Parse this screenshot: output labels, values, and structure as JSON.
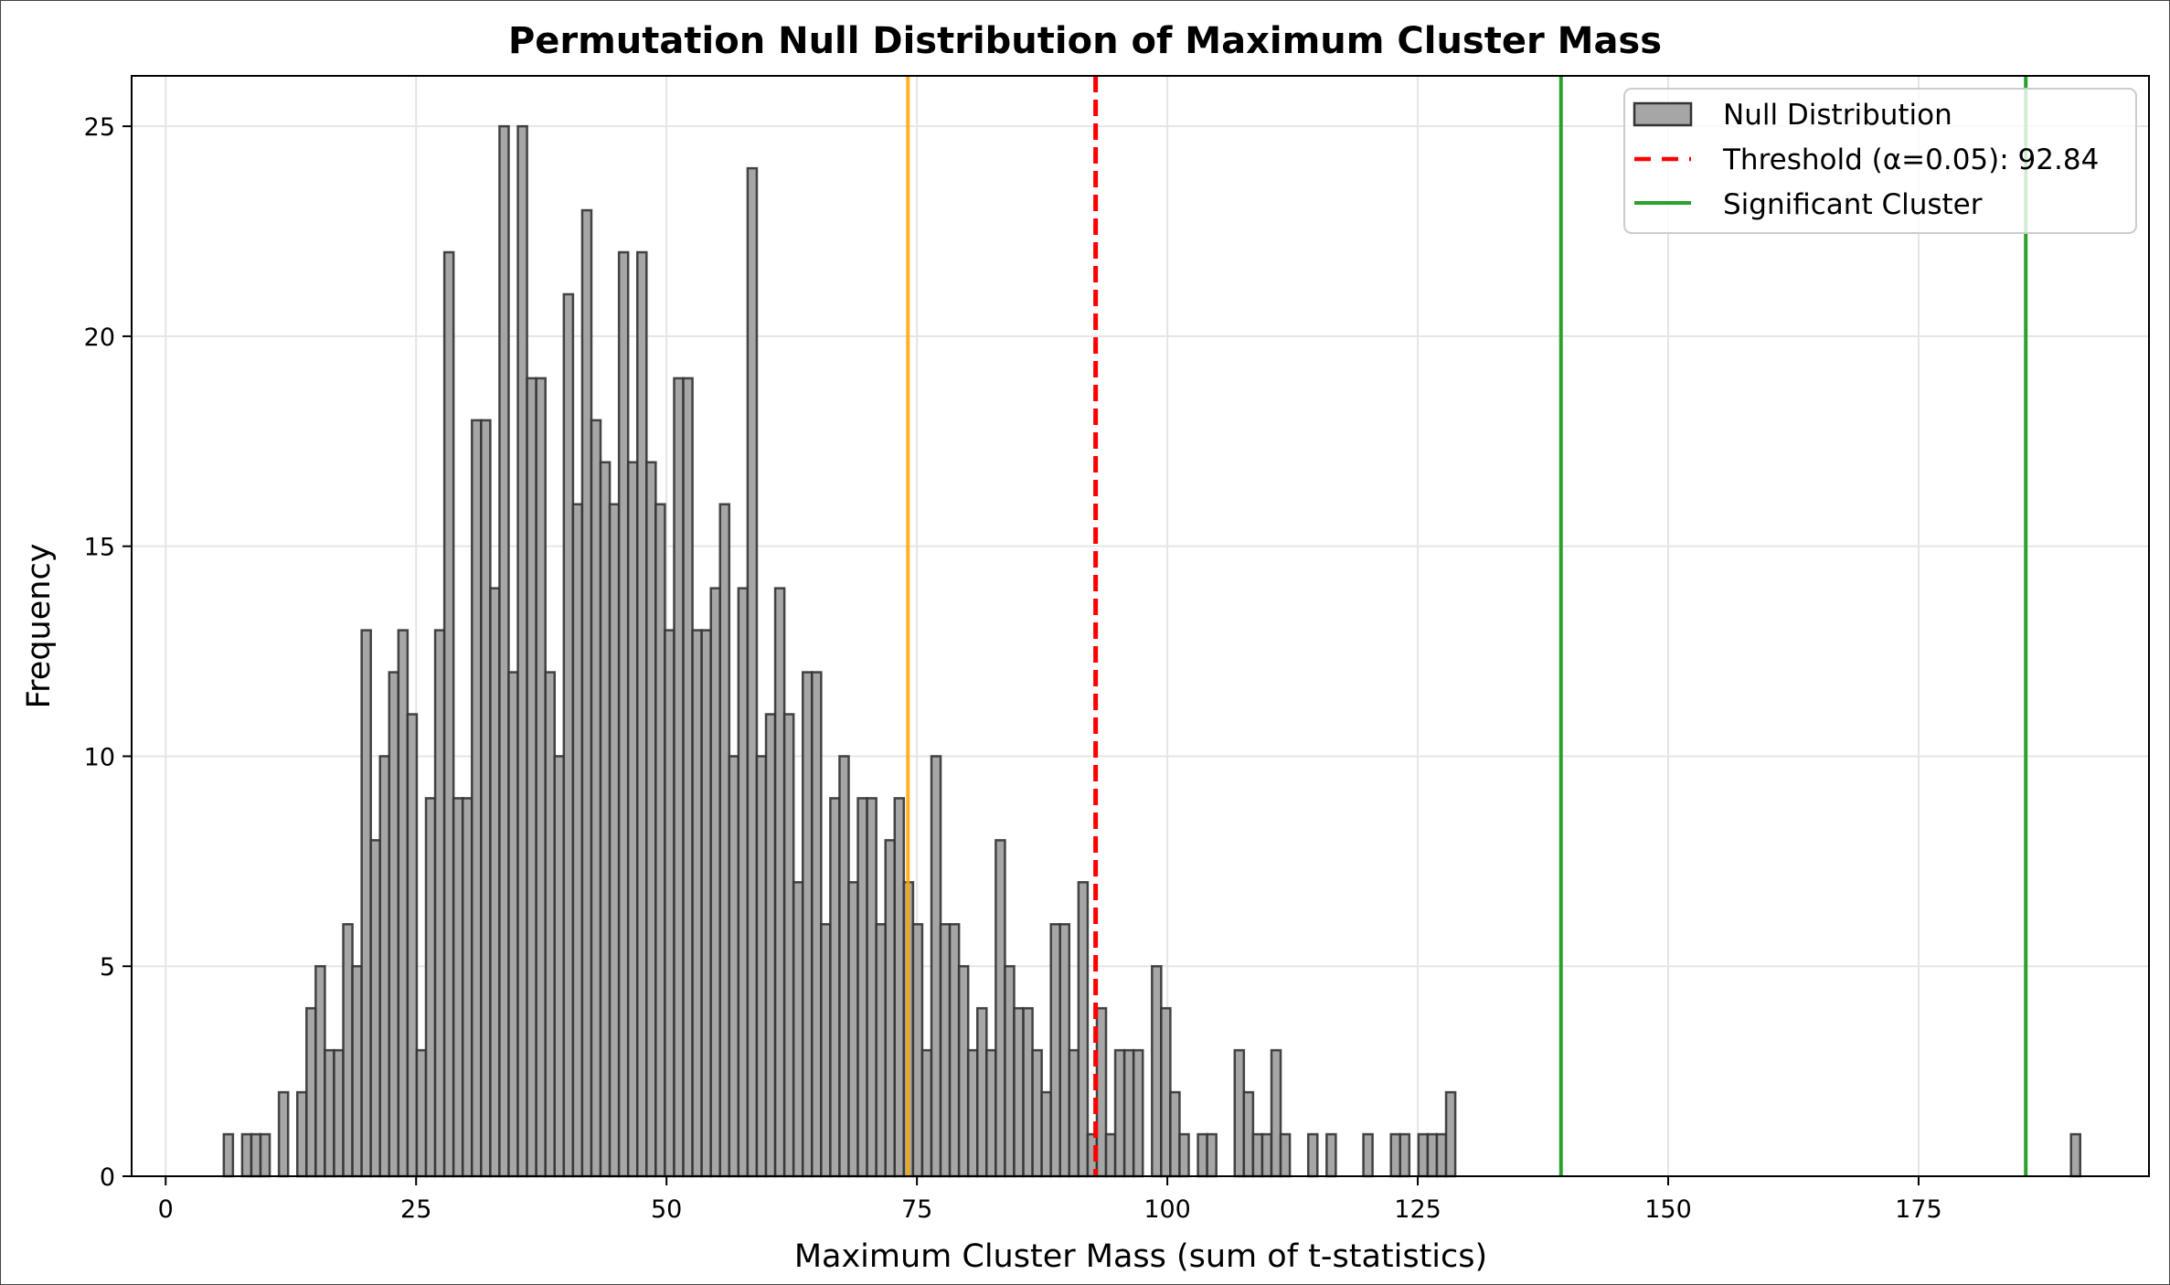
{
  "chart_data": {
    "type": "bar",
    "subtype": "histogram",
    "title": "Permutation Null Distribution of Maximum Cluster Mass",
    "xlabel": "Maximum Cluster Mass (sum of t-statistics)",
    "ylabel": "Frequency",
    "xlim": [
      -3.4,
      198
    ],
    "ylim": [
      0,
      26.2
    ],
    "xticks": [
      0,
      25,
      50,
      75,
      100,
      125,
      150,
      175
    ],
    "yticks": [
      0,
      5,
      10,
      15,
      20,
      25
    ],
    "grid": true,
    "legend_position": "top-right",
    "bin_start": 5.8,
    "bin_width": 0.9175,
    "series": [
      {
        "name": "Null Distribution",
        "color": "#a6a6a6",
        "edge_color": "#333333",
        "counts": [
          1,
          0,
          1,
          1,
          1,
          0,
          2,
          0,
          2,
          4,
          5,
          3,
          3,
          6,
          5,
          13,
          8,
          10,
          12,
          13,
          11,
          3,
          9,
          13,
          22,
          9,
          9,
          18,
          18,
          14,
          25,
          12,
          25,
          19,
          19,
          12,
          10,
          21,
          16,
          23,
          18,
          17,
          16,
          22,
          17,
          22,
          17,
          16,
          13,
          19,
          19,
          13,
          13,
          14,
          16,
          10,
          14,
          24,
          10,
          11,
          14,
          11,
          7,
          12,
          12,
          6,
          9,
          10,
          7,
          9,
          9,
          6,
          8,
          9,
          7,
          6,
          3,
          10,
          6,
          6,
          5,
          3,
          4,
          3,
          8,
          5,
          4,
          4,
          3,
          2,
          6,
          6,
          3,
          7,
          1,
          4,
          1,
          3,
          3,
          3,
          0,
          5,
          4,
          2,
          1,
          0,
          1,
          1,
          0,
          0,
          3,
          2,
          1,
          1,
          3,
          1,
          0,
          0,
          1,
          0,
          1,
          0,
          0,
          0,
          1,
          0,
          0,
          1,
          1,
          0,
          1,
          1,
          1,
          2,
          0,
          0,
          0,
          0,
          0,
          0,
          0,
          0,
          0,
          0,
          0,
          0,
          0,
          0,
          0,
          0,
          0,
          0,
          0,
          0,
          0,
          0,
          0,
          0,
          0,
          0,
          0,
          0,
          0,
          0,
          0,
          0,
          0,
          0,
          0,
          0,
          0,
          0,
          0,
          0,
          0,
          0,
          0,
          0,
          0,
          0,
          0,
          0,
          0,
          0,
          0,
          0,
          0,
          0,
          0,
          0,
          0,
          0,
          0,
          0,
          0,
          0,
          0,
          0,
          0,
          0,
          0,
          1
        ]
      }
    ],
    "vlines": [
      {
        "name": "",
        "x": 74.1,
        "color": "#ffa500",
        "style": "solid"
      },
      {
        "name": "Threshold (α=0.05): 92.84",
        "x": 92.84,
        "color": "#ff0000",
        "style": "dashed"
      },
      {
        "name": "Significant Cluster",
        "x": 139.3,
        "color": "#2ca02c",
        "style": "solid"
      },
      {
        "name": "",
        "x": 185.7,
        "color": "#2ca02c",
        "style": "solid"
      }
    ],
    "legend": [
      {
        "label": "Null Distribution",
        "kind": "patch",
        "color": "#a6a6a6"
      },
      {
        "label": "Threshold (α=0.05): 92.84",
        "kind": "dashed-line",
        "color": "#ff0000"
      },
      {
        "label": "Significant Cluster",
        "kind": "line",
        "color": "#2ca02c"
      }
    ]
  }
}
